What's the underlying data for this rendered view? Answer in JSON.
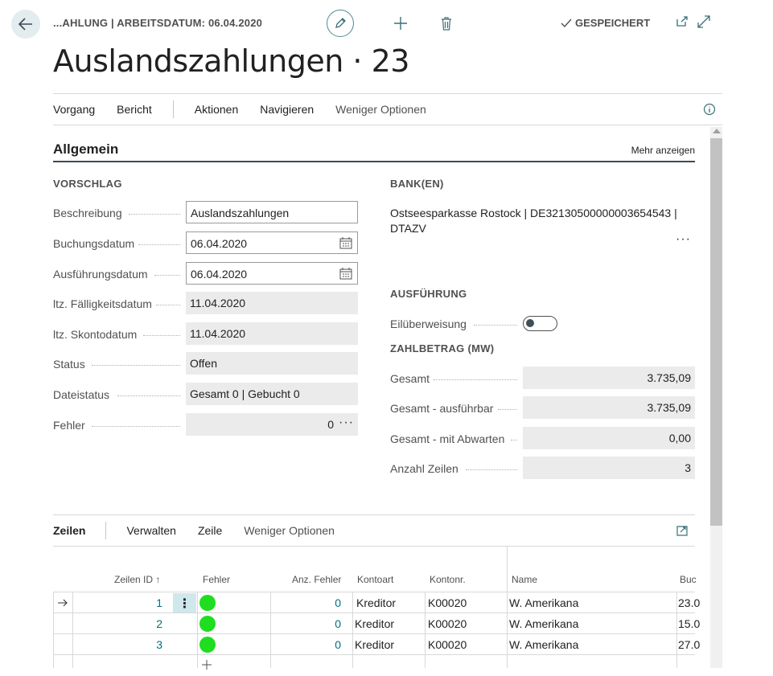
{
  "header": {
    "breadcrumb": "...AHLUNG | ARBEITSDATUM: 06.04.2020",
    "saved_label": "GESPEICHERT",
    "title": "Auslandszahlungen · 23"
  },
  "actionbar": {
    "items": [
      "Vorgang",
      "Bericht",
      "Aktionen",
      "Navigieren",
      "Weniger Optionen"
    ]
  },
  "section": {
    "title": "Allgemein",
    "more_label": "Mehr anzeigen"
  },
  "vorschlag": {
    "title": "VORSCHLAG",
    "fields": [
      {
        "label": "Beschreibung",
        "value": "Auslandszahlungen"
      },
      {
        "label": "Buchungsdatum",
        "value": "06.04.2020"
      },
      {
        "label": "Ausführungsdatum",
        "value": "06.04.2020"
      },
      {
        "label": "ltz. Fälligkeitsdatum",
        "value": "11.04.2020"
      },
      {
        "label": "ltz. Skontodatum",
        "value": "11.04.2020"
      },
      {
        "label": "Status",
        "value": "Offen"
      },
      {
        "label": "Dateistatus",
        "value": "Gesamt 0 | Gebucht 0"
      },
      {
        "label": "Fehler",
        "value": "0"
      }
    ]
  },
  "bank": {
    "title": "BANK(EN)",
    "text": "Ostseesparkasse Rostock | DE32130500000003654543 | DTAZV"
  },
  "ausfuehrung": {
    "title": "AUSFÜHRUNG",
    "eil_label": "Eilüberweisung",
    "eil_on": false
  },
  "zahlbetrag": {
    "title": "ZAHLBETRAG (MW)",
    "fields": [
      {
        "label": "Gesamt",
        "value": "3.735,09"
      },
      {
        "label": "Gesamt - ausführbar",
        "value": "3.735,09"
      },
      {
        "label": "Gesamt - mit Abwarten",
        "value": "0,00"
      },
      {
        "label": "Anzahl Zeilen",
        "value": "3"
      }
    ]
  },
  "lines": {
    "title": "Zeilen",
    "actions": [
      "Verwalten",
      "Zeile",
      "Weniger Optionen"
    ],
    "columns": {
      "id": "Zeilen ID",
      "fehler": "Fehler",
      "anz": "Anz. Fehler",
      "kontoart": "Kontoart",
      "kontonr": "Kontonr.",
      "name": "Name",
      "buc": "Buc"
    },
    "rows": [
      {
        "id": "1",
        "anz": "0",
        "kontoart": "Kreditor",
        "kontonr": "K00020",
        "name": "W. Amerikana",
        "buc": "23.0"
      },
      {
        "id": "2",
        "anz": "0",
        "kontoart": "Kreditor",
        "kontonr": "K00020",
        "name": "W. Amerikana",
        "buc": "15.0"
      },
      {
        "id": "3",
        "anz": "0",
        "kontoart": "Kreditor",
        "kontonr": "K00020",
        "name": "W. Amerikana",
        "buc": "27.0"
      }
    ],
    "status_color": "#1fdd1f"
  }
}
